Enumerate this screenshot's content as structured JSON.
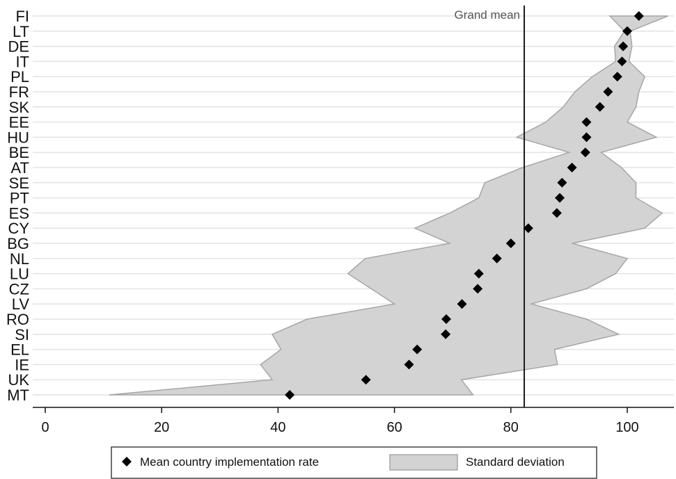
{
  "chart_data": {
    "type": "scatter",
    "orientation": "horizontal-categories",
    "categories": [
      "FI",
      "LT",
      "DE",
      "IT",
      "PL",
      "FR",
      "SK",
      "EE",
      "HU",
      "BE",
      "AT",
      "SE",
      "PT",
      "ES",
      "CY",
      "BG",
      "NL",
      "LU",
      "CZ",
      "LV",
      "RO",
      "SI",
      "EL",
      "IE",
      "UK",
      "MT"
    ],
    "series": [
      {
        "name": "Mean country implementation rate",
        "marker": "diamond",
        "values": [
          102,
          100,
          99.3,
          99.1,
          98.3,
          96.7,
          95.3,
          93,
          93,
          92.8,
          90.5,
          88.8,
          88.4,
          87.9,
          83,
          80,
          77.6,
          74.5,
          74.3,
          71.6,
          68.9,
          68.8,
          63.9,
          62.5,
          55.1,
          42
        ]
      },
      {
        "name": "Standard deviation",
        "type": "area-band",
        "lower": [
          97,
          99.5,
          97.8,
          98,
          94,
          91,
          89,
          86,
          81,
          90,
          82,
          75.5,
          74.5,
          69.5,
          63.5,
          69.5,
          55,
          52,
          56,
          60,
          45,
          39,
          40.5,
          37,
          39,
          11
        ],
        "upper": [
          107,
          100.5,
          100.8,
          100.3,
          103,
          102,
          101.5,
          100,
          105,
          95.5,
          99,
          101.5,
          101.5,
          106,
          103,
          90.5,
          100,
          98,
          93,
          83.5,
          93,
          98.5,
          87.5,
          88,
          71.5,
          73.5
        ]
      }
    ],
    "annotations": [
      {
        "text": "Grand mean",
        "x": 82.3
      }
    ],
    "xlim": [
      -2,
      108
    ],
    "xticks": [
      0,
      20,
      40,
      60,
      80,
      100
    ],
    "xlabel": "",
    "ylabel": "",
    "title": "",
    "grid": true,
    "legend_position": "bottom",
    "colors": {
      "band_fill": "#d3d3d3",
      "band_stroke": "#a6a6a6",
      "marker": "#000000",
      "grid": "#e3e3e3",
      "reference_line": "#1a1a1a"
    }
  },
  "legend": {
    "marker_label": "Mean country implementation rate",
    "band_label": "Standard deviation"
  }
}
